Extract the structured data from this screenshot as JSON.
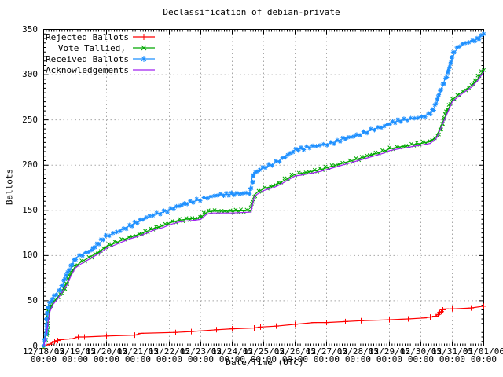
{
  "title": "Declassification of debian-private",
  "chart_data": {
    "type": "line",
    "title": "Declassification of debian-private",
    "xlabel": "Date/Time (UTC)",
    "ylabel": "Ballots",
    "grid": true,
    "legend_position": "top-left",
    "ylim": [
      0,
      350
    ],
    "y_ticks": [
      0,
      50,
      100,
      150,
      200,
      250,
      300,
      350
    ],
    "x_span_days": 14,
    "x_ticks": [
      {
        "date": "12/18/05",
        "time": "00:00"
      },
      {
        "date": "12/19/05",
        "time": "00:00"
      },
      {
        "date": "12/20/05",
        "time": "00:00"
      },
      {
        "date": "12/21/05",
        "time": "00:00"
      },
      {
        "date": "12/22/05",
        "time": "00:00"
      },
      {
        "date": "12/23/05",
        "time": "00:00"
      },
      {
        "date": "12/24/05",
        "time": "00:00"
      },
      {
        "date": "12/25/05",
        "time": "00:00"
      },
      {
        "date": "12/26/05",
        "time": "00:00"
      },
      {
        "date": "12/27/05",
        "time": "00:00"
      },
      {
        "date": "12/28/05",
        "time": "00:00"
      },
      {
        "date": "12/29/05",
        "time": "00:00"
      },
      {
        "date": "12/30/05",
        "time": "00:00"
      },
      {
        "date": "12/31/05",
        "time": "00:00"
      },
      {
        "date": "01/01/06",
        "time": "00:00"
      }
    ],
    "series": [
      {
        "name": "Rejected Ballots",
        "color": "#ff0000",
        "marker": "plus",
        "points": [
          [
            0,
            0
          ],
          [
            0.2,
            2
          ],
          [
            0.3,
            4
          ],
          [
            0.35,
            5
          ],
          [
            0.45,
            6
          ],
          [
            0.55,
            7
          ],
          [
            0.9,
            8
          ],
          [
            1.1,
            10
          ],
          [
            1.3,
            10
          ],
          [
            2.0,
            11
          ],
          [
            2.9,
            12
          ],
          [
            3.1,
            14
          ],
          [
            4.2,
            15
          ],
          [
            4.7,
            16
          ],
          [
            5.5,
            18
          ],
          [
            6.0,
            19
          ],
          [
            6.7,
            20
          ],
          [
            6.9,
            21
          ],
          [
            7.4,
            22
          ],
          [
            8.0,
            24
          ],
          [
            8.6,
            26
          ],
          [
            9.0,
            26
          ],
          [
            9.6,
            27
          ],
          [
            10.1,
            28
          ],
          [
            11.0,
            29
          ],
          [
            11.6,
            30
          ],
          [
            12.1,
            31
          ],
          [
            12.3,
            32
          ],
          [
            12.45,
            33
          ],
          [
            12.55,
            35
          ],
          [
            12.6,
            37
          ],
          [
            12.65,
            38
          ],
          [
            12.7,
            40
          ],
          [
            12.8,
            41
          ],
          [
            13.0,
            41
          ],
          [
            13.6,
            42
          ],
          [
            14.0,
            44
          ]
        ]
      },
      {
        "name": "Vote Tallied,",
        "color": "#00a800",
        "marker": "cross",
        "points": [
          [
            0,
            0
          ],
          [
            0.05,
            8
          ],
          [
            0.1,
            18
          ],
          [
            0.15,
            30
          ],
          [
            0.2,
            40
          ],
          [
            0.3,
            48
          ],
          [
            0.45,
            54
          ],
          [
            0.6,
            62
          ],
          [
            0.75,
            70
          ],
          [
            0.85,
            78
          ],
          [
            1.0,
            88
          ],
          [
            1.2,
            93
          ],
          [
            1.5,
            99
          ],
          [
            1.8,
            105
          ],
          [
            2.0,
            110
          ],
          [
            2.3,
            114
          ],
          [
            2.5,
            117
          ],
          [
            2.8,
            121
          ],
          [
            3.0,
            123
          ],
          [
            3.3,
            127
          ],
          [
            3.5,
            130
          ],
          [
            3.8,
            133
          ],
          [
            4.0,
            136
          ],
          [
            4.3,
            139
          ],
          [
            4.5,
            140
          ],
          [
            4.8,
            141
          ],
          [
            5.0,
            142
          ],
          [
            5.2,
            148
          ],
          [
            5.35,
            149
          ],
          [
            6.0,
            149
          ],
          [
            6.6,
            150
          ],
          [
            6.7,
            167
          ],
          [
            6.8,
            170
          ],
          [
            7.0,
            174
          ],
          [
            7.3,
            177
          ],
          [
            7.5,
            180
          ],
          [
            7.8,
            186
          ],
          [
            8.0,
            190
          ],
          [
            8.2,
            191
          ],
          [
            8.5,
            193
          ],
          [
            8.8,
            195
          ],
          [
            9.0,
            197
          ],
          [
            9.3,
            200
          ],
          [
            9.5,
            202
          ],
          [
            9.8,
            205
          ],
          [
            10.0,
            207
          ],
          [
            10.3,
            210
          ],
          [
            10.5,
            212
          ],
          [
            10.8,
            215
          ],
          [
            11.0,
            218
          ],
          [
            11.3,
            220
          ],
          [
            11.5,
            221
          ],
          [
            11.8,
            223
          ],
          [
            12.0,
            224
          ],
          [
            12.3,
            226
          ],
          [
            12.5,
            232
          ],
          [
            12.65,
            244
          ],
          [
            12.8,
            256
          ],
          [
            13.0,
            272
          ],
          [
            13.2,
            278
          ],
          [
            13.4,
            283
          ],
          [
            13.6,
            288
          ],
          [
            13.8,
            295
          ],
          [
            14.0,
            305
          ]
        ]
      },
      {
        "name": "Received Ballots",
        "color": "#1e90ff",
        "marker": "star",
        "points": [
          [
            0,
            2
          ],
          [
            0.05,
            15
          ],
          [
            0.1,
            28
          ],
          [
            0.15,
            38
          ],
          [
            0.2,
            47
          ],
          [
            0.3,
            55
          ],
          [
            0.45,
            60
          ],
          [
            0.6,
            68
          ],
          [
            0.75,
            78
          ],
          [
            0.85,
            85
          ],
          [
            1.0,
            97
          ],
          [
            1.2,
            101
          ],
          [
            1.5,
            106
          ],
          [
            1.8,
            114
          ],
          [
            2.0,
            121
          ],
          [
            2.3,
            126
          ],
          [
            2.5,
            129
          ],
          [
            2.8,
            134
          ],
          [
            3.0,
            137
          ],
          [
            3.3,
            142
          ],
          [
            3.5,
            145
          ],
          [
            3.8,
            148
          ],
          [
            4.0,
            151
          ],
          [
            4.3,
            155
          ],
          [
            4.5,
            157
          ],
          [
            4.8,
            160
          ],
          [
            5.0,
            162
          ],
          [
            5.3,
            165
          ],
          [
            5.5,
            167
          ],
          [
            6.0,
            168
          ],
          [
            6.55,
            169
          ],
          [
            6.65,
            190
          ],
          [
            6.8,
            193
          ],
          [
            7.0,
            197
          ],
          [
            7.3,
            201
          ],
          [
            7.5,
            205
          ],
          [
            7.8,
            213
          ],
          [
            8.0,
            217
          ],
          [
            8.2,
            218
          ],
          [
            8.5,
            220
          ],
          [
            8.8,
            222
          ],
          [
            9.0,
            223
          ],
          [
            9.3,
            226
          ],
          [
            9.5,
            229
          ],
          [
            9.8,
            231
          ],
          [
            10.0,
            233
          ],
          [
            10.3,
            237
          ],
          [
            10.5,
            240
          ],
          [
            10.8,
            243
          ],
          [
            11.0,
            246
          ],
          [
            11.3,
            249
          ],
          [
            11.5,
            250
          ],
          [
            11.8,
            252
          ],
          [
            12.0,
            253
          ],
          [
            12.2,
            256
          ],
          [
            12.4,
            262
          ],
          [
            12.55,
            272
          ],
          [
            12.7,
            288
          ],
          [
            12.85,
            305
          ],
          [
            13.0,
            318
          ],
          [
            13.1,
            326
          ],
          [
            13.25,
            332
          ],
          [
            13.4,
            335
          ],
          [
            13.6,
            337
          ],
          [
            13.75,
            339
          ],
          [
            13.9,
            342
          ],
          [
            14.0,
            345
          ]
        ]
      },
      {
        "name": "Acknowledgements",
        "color": "#a020f0",
        "marker": "none",
        "points": [
          [
            0,
            0
          ],
          [
            0.05,
            6
          ],
          [
            0.1,
            16
          ],
          [
            0.15,
            28
          ],
          [
            0.2,
            38
          ],
          [
            0.3,
            46
          ],
          [
            0.45,
            52
          ],
          [
            0.6,
            60
          ],
          [
            0.75,
            68
          ],
          [
            0.85,
            76
          ],
          [
            1.0,
            86
          ],
          [
            1.2,
            91
          ],
          [
            1.5,
            97
          ],
          [
            1.8,
            103
          ],
          [
            2.0,
            108
          ],
          [
            2.3,
            112
          ],
          [
            2.5,
            115
          ],
          [
            2.8,
            119
          ],
          [
            3.0,
            121
          ],
          [
            3.3,
            125
          ],
          [
            3.5,
            128
          ],
          [
            3.8,
            131
          ],
          [
            4.0,
            134
          ],
          [
            4.3,
            137
          ],
          [
            4.5,
            138
          ],
          [
            4.8,
            139
          ],
          [
            5.0,
            140
          ],
          [
            5.2,
            146
          ],
          [
            5.35,
            147
          ],
          [
            6.0,
            147
          ],
          [
            6.6,
            148
          ],
          [
            6.7,
            165
          ],
          [
            6.8,
            168
          ],
          [
            7.0,
            172
          ],
          [
            7.3,
            175
          ],
          [
            7.5,
            178
          ],
          [
            7.8,
            184
          ],
          [
            8.0,
            188
          ],
          [
            8.2,
            189
          ],
          [
            8.5,
            191
          ],
          [
            8.8,
            193
          ],
          [
            9.0,
            195
          ],
          [
            9.3,
            198
          ],
          [
            9.5,
            200
          ],
          [
            9.8,
            203
          ],
          [
            10.0,
            205
          ],
          [
            10.3,
            208
          ],
          [
            10.5,
            210
          ],
          [
            10.8,
            213
          ],
          [
            11.0,
            216
          ],
          [
            11.3,
            218
          ],
          [
            11.5,
            219
          ],
          [
            11.8,
            221
          ],
          [
            12.0,
            222
          ],
          [
            12.3,
            224
          ],
          [
            12.5,
            230
          ],
          [
            12.65,
            242
          ],
          [
            12.8,
            254
          ],
          [
            13.0,
            270
          ],
          [
            13.2,
            276
          ],
          [
            13.4,
            281
          ],
          [
            13.6,
            286
          ],
          [
            13.8,
            293
          ],
          [
            14.0,
            303
          ]
        ]
      }
    ],
    "grid_color": "#a8a8a8",
    "axis_color": "#000000"
  }
}
